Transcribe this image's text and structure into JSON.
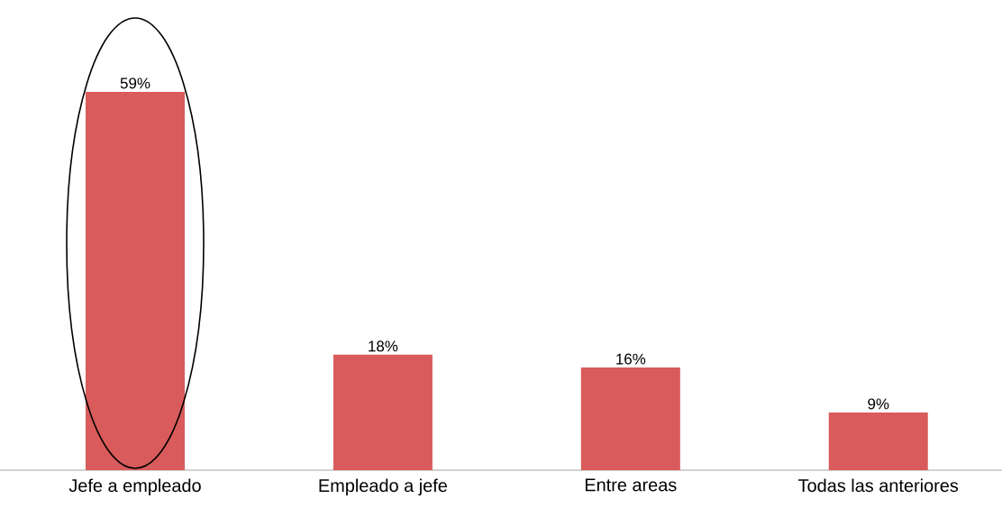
{
  "chart_data": {
    "type": "bar",
    "categories": [
      "Jefe a empleado",
      "Empleado a jefe",
      "Entre areas",
      "Todas las anteriores"
    ],
    "values": [
      59,
      18,
      16,
      9
    ],
    "value_labels": [
      "59%",
      "18%",
      "16%",
      "9%"
    ],
    "color": "#d95b5b"
  }
}
